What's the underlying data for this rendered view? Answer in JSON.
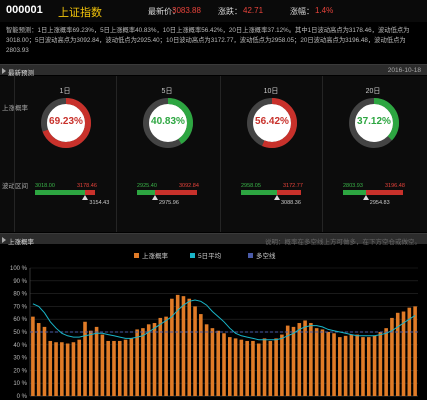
{
  "header": {
    "code": "000001",
    "name": "上证指数",
    "latest_label": "最新价：",
    "latest_value": "3083.88",
    "change_label": "涨跌：",
    "change_value": "42.71",
    "pct_label": "涨幅：",
    "pct_value": "1.4%"
  },
  "summary": {
    "text": "智能预测：1日上涨概率69.23%，5日上涨概率40.83%，10日上涨概率56.42%，20日上涨概率37.12%。其中1日波动高点为3178.46，波动低点为3018.00；5日波动高点为3092.84，波动低点为2925.40；10日波动高点为3172.77，波动低点为2958.05；20日波动高点为3196.48，波动低点为2803.93"
  },
  "prediction_section": {
    "title": "最新预测",
    "date": "2016-10-18",
    "up_prob_label": "上涨概率",
    "range_label": "波动区间"
  },
  "columns": [
    {
      "title": "1日",
      "prob": "69.23%",
      "prob_fraction": 0.6923,
      "ring_color": "#c8312b",
      "low": "3018.00",
      "high": "3178.46",
      "point": "3154.43",
      "point_fraction": 0.84
    },
    {
      "title": "5日",
      "prob": "40.83%",
      "prob_fraction": 0.4083,
      "ring_color": "#2da641",
      "low": "2925.40",
      "high": "3092.84",
      "point": "2975.96",
      "point_fraction": 0.3
    },
    {
      "title": "10日",
      "prob": "56.42%",
      "prob_fraction": 0.5642,
      "ring_color": "#c8312b",
      "low": "2958.05",
      "high": "3172.77",
      "point": "3088.36",
      "point_fraction": 0.6
    },
    {
      "title": "20日",
      "prob": "37.12%",
      "prob_fraction": 0.3712,
      "ring_color": "#2da641",
      "low": "2803.93",
      "high": "3196.48",
      "point": "2954.83",
      "point_fraction": 0.38
    }
  ],
  "chart_section": {
    "title": "上涨概率",
    "note": "说明：概率在多空线上方可做多，在下方空仓或做空。"
  },
  "chart_data": {
    "type": "bar",
    "legend": [
      "上涨概率",
      "5日平均",
      "多空线"
    ],
    "legend_colors": [
      "#e07b27",
      "#19b5c8",
      "#4a5ba8"
    ],
    "y_ticks": [
      "0 %",
      "10 %",
      "20 %",
      "30 %",
      "40 %",
      "50 %",
      "60 %",
      "70 %",
      "80 %",
      "90 %",
      "100 %"
    ],
    "ylim": [
      0,
      100
    ],
    "threshold": 50,
    "series": [
      {
        "name": "上涨概率",
        "values": [
          62,
          57,
          54,
          43,
          42,
          42,
          41,
          42,
          44,
          58,
          51,
          54,
          48,
          43,
          43,
          43,
          44,
          45,
          52,
          53,
          56,
          57,
          61,
          62,
          76,
          79,
          78,
          76,
          70,
          64,
          56,
          53,
          51,
          49,
          46,
          45,
          44,
          43,
          43,
          41,
          45,
          43,
          45,
          48,
          55,
          54,
          57,
          59,
          57,
          53,
          52,
          50,
          49,
          46,
          47,
          48,
          48,
          46,
          46,
          47,
          50,
          53,
          61,
          65,
          66,
          69,
          70
        ]
      },
      {
        "name": "5日平均",
        "values": [
          72,
          70,
          65,
          58,
          53,
          49,
          47,
          46,
          46,
          47,
          48,
          49,
          49,
          48,
          47,
          46,
          45,
          45,
          46,
          47,
          50,
          53,
          56,
          59,
          62,
          67,
          71,
          74,
          75,
          74,
          71,
          66,
          62,
          58,
          53,
          49,
          47,
          46,
          45,
          44,
          44,
          44,
          44,
          45,
          47,
          49,
          52,
          54,
          55,
          55,
          54,
          52,
          51,
          50,
          49,
          48,
          47,
          47,
          47,
          47,
          48,
          49,
          51,
          54,
          57,
          60,
          63
        ]
      }
    ]
  }
}
